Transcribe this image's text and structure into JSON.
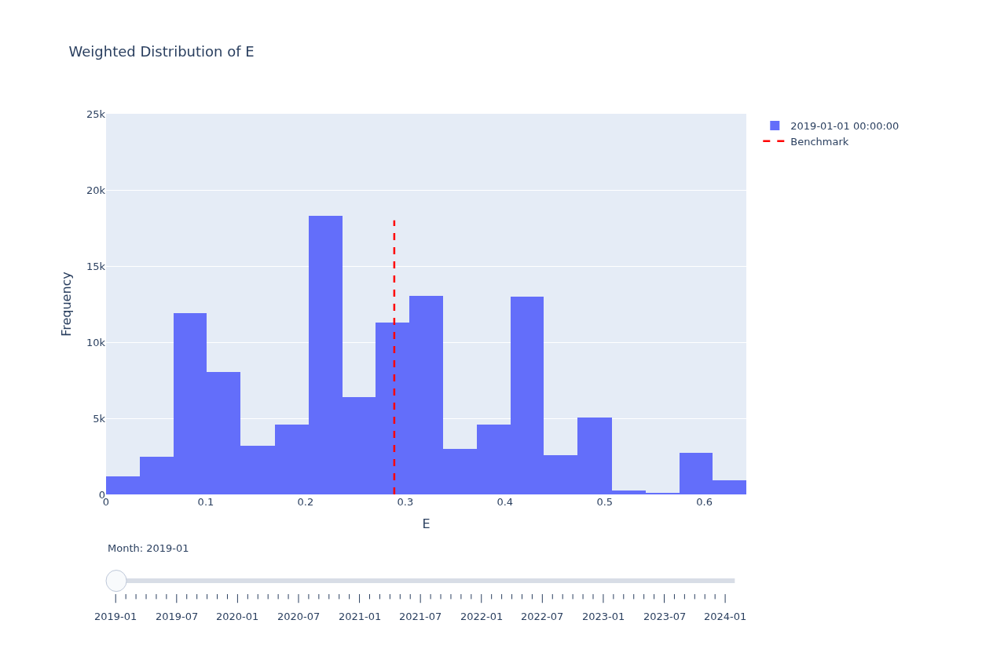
{
  "chart_data": {
    "type": "histogram",
    "title": "Weighted Distribution of E",
    "xlabel": "E",
    "ylabel": "Frequency",
    "bins": [
      0,
      0.034,
      0.068,
      0.101,
      0.135,
      0.169,
      0.203,
      0.237,
      0.27,
      0.304,
      0.338,
      0.372,
      0.406,
      0.439,
      0.473,
      0.507,
      0.541,
      0.575,
      0.608,
      0.642
    ],
    "series": [
      {
        "name": "2019-01-01 00:00:00",
        "color": "#636efa",
        "values": [
          1200,
          2500,
          11900,
          8050,
          3200,
          4600,
          18300,
          6400,
          11300,
          13050,
          3000,
          4600,
          13000,
          2600,
          5050,
          250,
          100,
          2750,
          950
        ]
      },
      {
        "type": "line",
        "name": "Benchmark",
        "color": "#ff0000",
        "line_style": "dashed",
        "marker": "none",
        "x": [
          0.289,
          0.289
        ],
        "values": [
          0,
          18000
        ]
      }
    ],
    "xlim": [
      0,
      0.642
    ],
    "xticks": [
      0,
      0.1,
      0.2,
      0.3,
      0.4,
      0.5,
      0.6
    ],
    "ylim": [
      0,
      25000
    ],
    "yticks": [
      {
        "value": 0,
        "label": "0"
      },
      {
        "value": 5000,
        "label": "5k"
      },
      {
        "value": 10000,
        "label": "10k"
      },
      {
        "value": 15000,
        "label": "15k"
      },
      {
        "value": 20000,
        "label": "20k"
      },
      {
        "value": 25000,
        "label": "25k"
      }
    ],
    "grid": "y",
    "legend": "top right",
    "annotations": [
      "Month: 2019-01",
      "2019-01",
      "2019-07",
      "2020-01",
      "2020-07",
      "2021-01",
      "2021-07",
      "2022-01",
      "2022-07",
      "2023-01",
      "2023-07",
      "2024-01"
    ]
  }
}
